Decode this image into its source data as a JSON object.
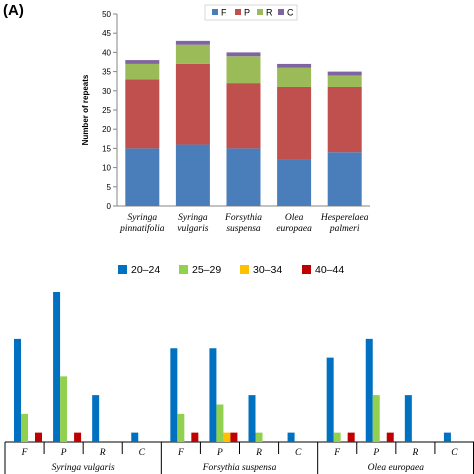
{
  "panel_label": "(A)",
  "colors": {
    "F": "#4a7ebb",
    "P": "#c0504d",
    "R": "#9bbb59",
    "C": "#8064a2",
    "r20": "#0070c0",
    "r25": "#92d050",
    "r30": "#ffc000",
    "r40": "#c00000",
    "axis": "#868686"
  },
  "chart_data": [
    {
      "type": "bar",
      "stacked": true,
      "title": "",
      "xlabel": "",
      "ylabel": "Number of repeats",
      "ylim": [
        0,
        50
      ],
      "yticks": [
        0,
        5,
        10,
        15,
        20,
        25,
        30,
        35,
        40,
        45,
        50
      ],
      "legend_position": "top-right",
      "categories": [
        [
          "Syringa",
          "pinnatifolia"
        ],
        [
          "Syringa",
          "vulgaris"
        ],
        [
          "Forsythia",
          "suspensa"
        ],
        [
          "Olea",
          "europaea"
        ],
        [
          "Hesperelaea",
          "palmeri"
        ]
      ],
      "series": [
        {
          "name": "F",
          "color_key": "F",
          "values": [
            15,
            16,
            15,
            12,
            14
          ]
        },
        {
          "name": "P",
          "color_key": "P",
          "values": [
            18,
            21,
            17,
            19,
            17
          ]
        },
        {
          "name": "R",
          "color_key": "R",
          "values": [
            4,
            5,
            7,
            5,
            3
          ]
        },
        {
          "name": "C",
          "color_key": "C",
          "values": [
            1,
            1,
            1,
            1,
            1
          ]
        }
      ]
    },
    {
      "type": "bar",
      "stacked": false,
      "title": "",
      "xlabel": "",
      "ylabel": "",
      "ylim": [
        0,
        16
      ],
      "legend_position": "top-center",
      "groups": [
        "Syringa vulgaris",
        "Forsythia suspensa",
        "Olea europaea"
      ],
      "categories": [
        "F",
        "P",
        "R",
        "C"
      ],
      "series": [
        {
          "name": "20–24",
          "color_key": "r20",
          "values": [
            [
              11,
              16,
              5,
              1
            ],
            [
              10,
              10,
              5,
              1
            ],
            [
              9,
              11,
              5,
              1
            ]
          ]
        },
        {
          "name": "25–29",
          "color_key": "r25",
          "values": [
            [
              3,
              7,
              0,
              0
            ],
            [
              3,
              4,
              1,
              0
            ],
            [
              1,
              5,
              0,
              0
            ]
          ]
        },
        {
          "name": "30–34",
          "color_key": "r30",
          "values": [
            [
              0,
              0,
              0,
              0
            ],
            [
              0,
              1,
              0,
              0
            ],
            [
              0,
              0,
              0,
              0
            ]
          ]
        },
        {
          "name": "40–44",
          "color_key": "r40",
          "values": [
            [
              1,
              1,
              0,
              0
            ],
            [
              1,
              1,
              0,
              0
            ],
            [
              1,
              1,
              0,
              0
            ]
          ]
        }
      ]
    }
  ]
}
